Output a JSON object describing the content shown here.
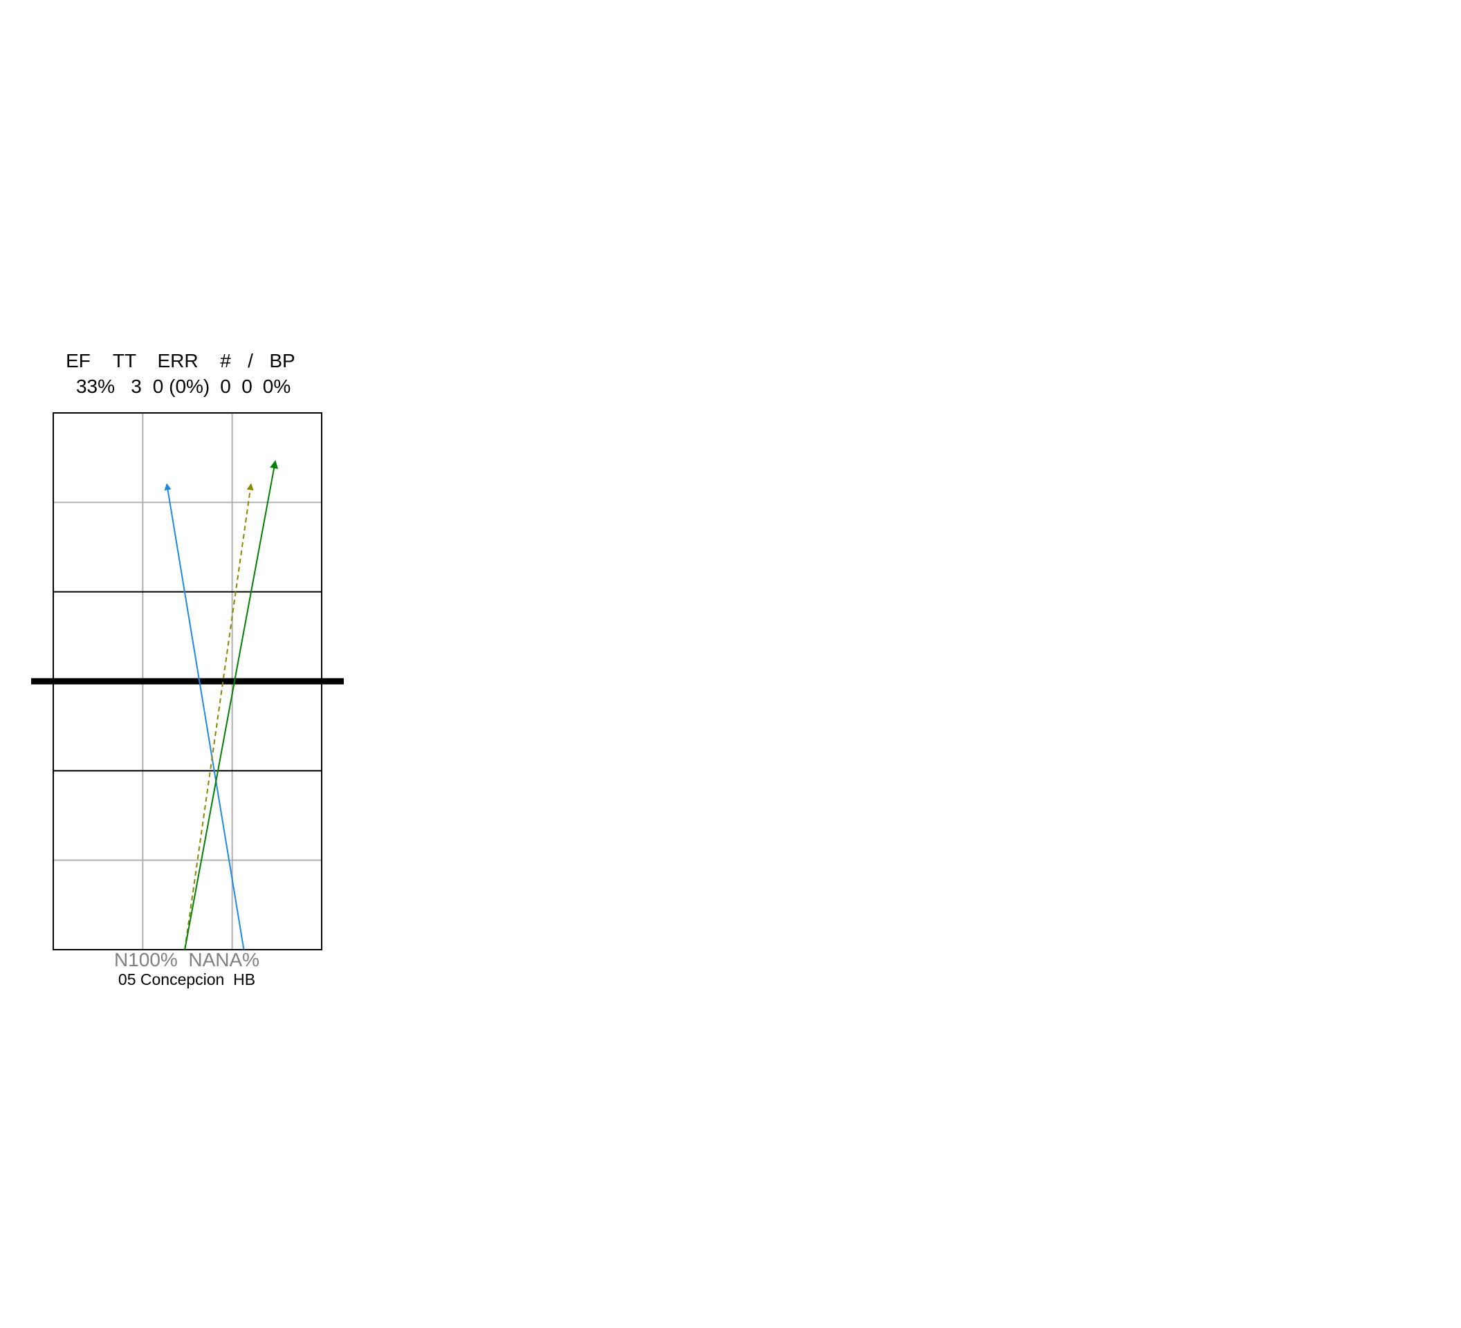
{
  "stats": {
    "headers": [
      "EF",
      "TT",
      "ERR",
      "#",
      "/",
      "BP"
    ],
    "values": [
      "33%",
      "3",
      "0 (0%)",
      "0",
      "0",
      "0%"
    ]
  },
  "footer": {
    "percent_label": "N100%  NANA%",
    "player_label": "05 Concepcion  HB"
  },
  "colors": {
    "court_line": "#000000",
    "grid_line": "#b0b0b0",
    "net": "#000000",
    "percent_text": "#808080"
  },
  "chart_data": {
    "type": "line",
    "description_units": "court coordinates: x 0-3 across court width, y 0-6 along court length (net at y=3)",
    "xlim": [
      0,
      3
    ],
    "ylim": [
      0,
      6
    ],
    "net_y": 3,
    "series": [
      {
        "from": [
          2.13,
          0
        ],
        "to": [
          1.27,
          5.2
        ],
        "color": "#1e88e5",
        "dash": false
      },
      {
        "from": [
          1.47,
          0
        ],
        "to": [
          2.21,
          5.2
        ],
        "color": "#888800",
        "dash": true
      },
      {
        "from": [
          1.47,
          0
        ],
        "to": [
          2.48,
          5.45
        ],
        "color": "#008000",
        "dash": false
      }
    ]
  }
}
